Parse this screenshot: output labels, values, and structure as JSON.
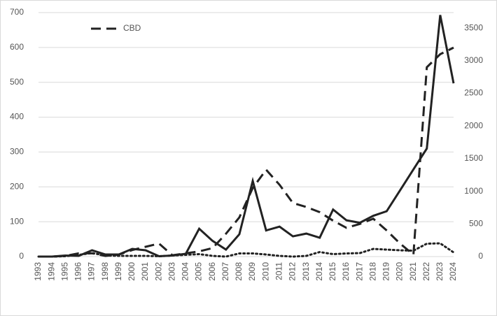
{
  "chart_data": {
    "type": "line",
    "categories": [
      "1993",
      "1994",
      "1995",
      "1996",
      "1997",
      "1998",
      "1999",
      "2000",
      "2001",
      "2002",
      "2003",
      "2004",
      "2005",
      "2006",
      "2007",
      "2008",
      "2009",
      "2010",
      "2011",
      "2012",
      "2013",
      "2014",
      "2015",
      "2016",
      "2017",
      "2018",
      "2019",
      "2020",
      "2021",
      "2022",
      "2023",
      "2024"
    ],
    "series": [
      {
        "color": "#222222",
        "style": "solid",
        "values": [
          0,
          0,
          3,
          2,
          18,
          6,
          6,
          22,
          18,
          1,
          3,
          8,
          80,
          45,
          20,
          64,
          217,
          75,
          86,
          58,
          66,
          54,
          135,
          104,
          97,
          117,
          130,
          190,
          250,
          310,
          693,
          497
        ]
      },
      {
        "name": "CBD",
        "color": "#222222",
        "style": "dashed",
        "axis": "y2",
        "values": [
          0,
          0,
          10,
          50,
          50,
          10,
          30,
          100,
          150,
          200,
          20,
          50,
          80,
          130,
          350,
          600,
          1050,
          1330,
          1100,
          820,
          760,
          680,
          550,
          440,
          500,
          580,
          400,
          200,
          30,
          2900,
          3100,
          3200
        ]
      },
      {
        "color": "#222222",
        "style": "dotted",
        "values": [
          0,
          0,
          1,
          5,
          10,
          3,
          2,
          2,
          2,
          1,
          3,
          5,
          7,
          2,
          0,
          9,
          9,
          6,
          2,
          0,
          2,
          13,
          7,
          9,
          10,
          22,
          20,
          18,
          17,
          37,
          38,
          12
        ]
      }
    ],
    "ylim": [
      0,
      700
    ],
    "yticks": [
      0,
      100,
      200,
      300,
      400,
      500,
      600,
      700
    ],
    "y2lim": [
      0,
      3737
    ],
    "y2ticks": [
      0,
      500,
      1000,
      1500,
      2000,
      2500,
      3000,
      3500
    ],
    "grid": true,
    "legend": "upper left"
  }
}
